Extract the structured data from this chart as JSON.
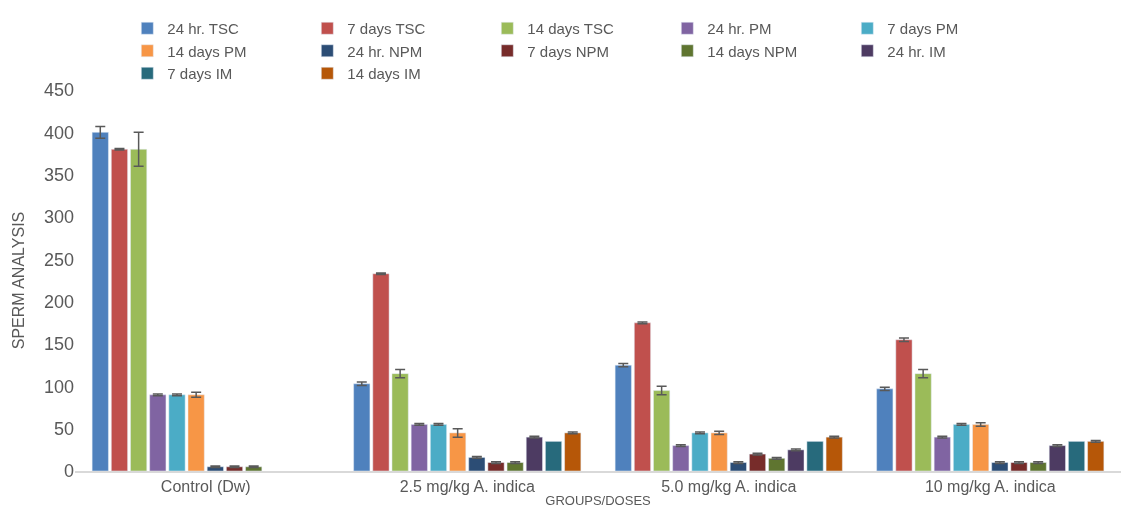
{
  "chart_data": {
    "type": "bar",
    "xlabel": "GROUPS/DOSES",
    "ylabel": "SPERM ANALYSIS",
    "categories": [
      "Control (Dw)",
      "2.5 mg/kg A. indica",
      "5.0 mg/kg A. indica",
      "10 mg/kg A. indica"
    ],
    "ylim": [
      0,
      450
    ],
    "yticks": [
      0,
      50,
      100,
      150,
      200,
      250,
      300,
      350,
      400,
      450
    ],
    "legend": "top",
    "series": [
      {
        "name": "24 hr. TSC",
        "color": "#4f81bd",
        "values": [
          400,
          103,
          125,
          97
        ],
        "errors": [
          7,
          2,
          2,
          2
        ]
      },
      {
        "name": "7 days TSC",
        "color": "#c0504d",
        "values": [
          380,
          233,
          175,
          155
        ],
        "errors": [
          1,
          1,
          1,
          2
        ]
      },
      {
        "name": "14 days TSC",
        "color": "#9bbb59",
        "values": [
          380,
          115,
          95,
          115
        ],
        "errors": [
          20,
          5,
          5,
          5
        ]
      },
      {
        "name": "24 hr. PM",
        "color": "#8064a2",
        "values": [
          90,
          55,
          30,
          40
        ],
        "errors": [
          1,
          1,
          1,
          1
        ]
      },
      {
        "name": "7 days PM",
        "color": "#4bacc6",
        "values": [
          90,
          55,
          45,
          55
        ],
        "errors": [
          1,
          1,
          1,
          1
        ]
      },
      {
        "name": "14 days PM",
        "color": "#f79646",
        "values": [
          90,
          45,
          45,
          55
        ],
        "errors": [
          3,
          5,
          2,
          2
        ]
      },
      {
        "name": "24 hr. NPM",
        "color": "#2c4d75",
        "values": [
          5,
          16,
          10,
          10
        ],
        "errors": [
          1,
          1,
          1,
          1
        ]
      },
      {
        "name": "7 days NPM",
        "color": "#772c2a",
        "values": [
          5,
          10,
          20,
          10
        ],
        "errors": [
          1,
          1,
          1,
          1
        ]
      },
      {
        "name": "14 days NPM",
        "color": "#5f7530",
        "values": [
          5,
          10,
          15,
          10
        ],
        "errors": [
          1,
          1,
          1,
          1
        ]
      },
      {
        "name": "24 hr. IM",
        "color": "#4d3b62",
        "values": [
          null,
          40,
          25,
          30
        ],
        "errors": [
          null,
          1,
          1,
          1
        ]
      },
      {
        "name": "7 days IM",
        "color": "#276a7c",
        "values": [
          null,
          35,
          35,
          35
        ],
        "errors": [
          null,
          null,
          null,
          null
        ]
      },
      {
        "name": "14 days IM",
        "color": "#b65708",
        "values": [
          null,
          45,
          40,
          35
        ],
        "errors": [
          null,
          1,
          1,
          1
        ]
      }
    ]
  }
}
